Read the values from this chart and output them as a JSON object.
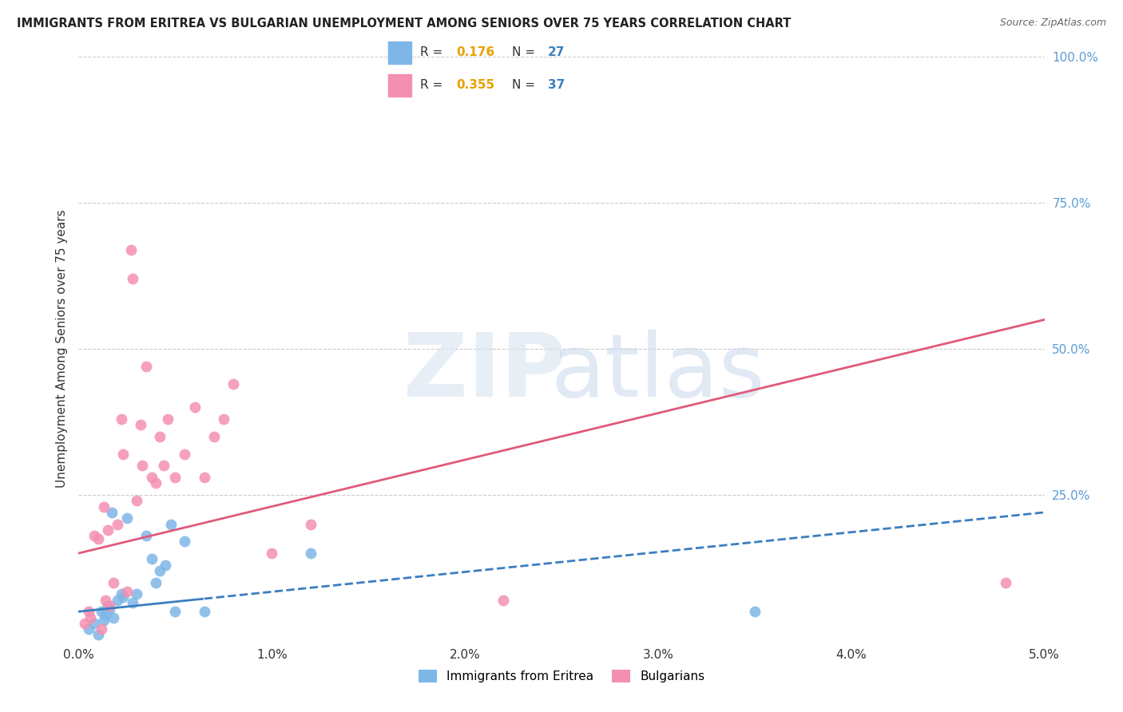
{
  "title": "IMMIGRANTS FROM ERITREA VS BULGARIAN UNEMPLOYMENT AMONG SENIORS OVER 75 YEARS CORRELATION CHART",
  "source": "Source: ZipAtlas.com",
  "ylabel": "Unemployment Among Seniors over 75 years",
  "xlim": [
    0.0,
    5.0
  ],
  "ylim": [
    0.0,
    100.0
  ],
  "right_yticks": [
    0.0,
    25.0,
    50.0,
    75.0,
    100.0
  ],
  "right_ytick_labels": [
    "",
    "25.0%",
    "50.0%",
    "75.0%",
    "100.0%"
  ],
  "eritrea_R": 0.176,
  "eritrea_N": 27,
  "bulgarian_R": 0.355,
  "bulgarian_N": 37,
  "eritrea_color": "#7EB6E8",
  "bulgarian_color": "#F48FB1",
  "eritrea_line_color": "#3B7EC0",
  "bulgarian_line_color": "#E05A7A",
  "r_label_color": "#E8A000",
  "n_label_color": "#3B7EC0",
  "background_color": "#ffffff",
  "grid_color": "#cccccc",
  "eritrea_x": [
    0.05,
    0.08,
    0.1,
    0.12,
    0.13,
    0.14,
    0.15,
    0.16,
    0.17,
    0.18,
    0.2,
    0.22,
    0.23,
    0.25,
    0.28,
    0.3,
    0.35,
    0.38,
    0.4,
    0.42,
    0.45,
    0.48,
    0.5,
    0.55,
    0.65,
    1.2,
    3.5
  ],
  "eritrea_y": [
    2.0,
    3.0,
    1.0,
    5.0,
    3.5,
    4.5,
    6.0,
    5.5,
    22.0,
    4.0,
    7.0,
    8.0,
    7.5,
    21.0,
    6.5,
    8.0,
    18.0,
    14.0,
    10.0,
    12.0,
    13.0,
    20.0,
    5.0,
    17.0,
    5.0,
    15.0,
    5.0
  ],
  "bulgarian_x": [
    0.03,
    0.05,
    0.06,
    0.08,
    0.1,
    0.12,
    0.13,
    0.14,
    0.15,
    0.16,
    0.18,
    0.2,
    0.22,
    0.23,
    0.25,
    0.27,
    0.28,
    0.3,
    0.32,
    0.33,
    0.35,
    0.38,
    0.4,
    0.42,
    0.44,
    0.46,
    0.5,
    0.55,
    0.6,
    0.65,
    0.7,
    0.75,
    0.8,
    1.0,
    1.2,
    2.2,
    4.8
  ],
  "bulgarian_y": [
    3.0,
    5.0,
    4.0,
    18.0,
    17.5,
    2.0,
    23.0,
    7.0,
    19.0,
    6.0,
    10.0,
    20.0,
    38.0,
    32.0,
    8.5,
    67.0,
    62.0,
    24.0,
    37.0,
    30.0,
    47.0,
    28.0,
    27.0,
    35.0,
    30.0,
    38.0,
    28.0,
    32.0,
    40.0,
    28.0,
    35.0,
    38.0,
    44.0,
    15.0,
    20.0,
    7.0,
    10.0
  ],
  "eritrea_line_start_x": 0.0,
  "eritrea_line_end_x": 5.0,
  "eritrea_solid_end_x": 0.65,
  "bulgarian_line_start_x": 0.0,
  "bulgarian_line_end_x": 5.0
}
